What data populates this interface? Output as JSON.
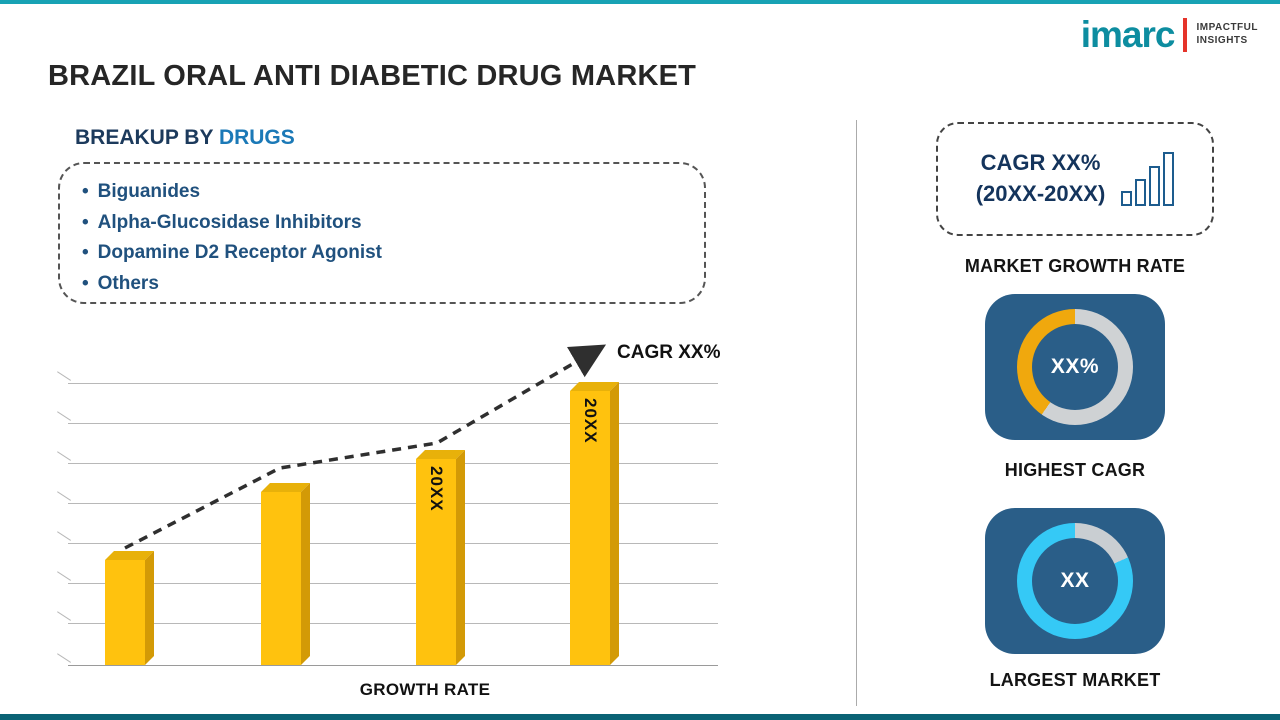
{
  "page": {
    "title": "BRAZIL ORAL ANTI DIABETIC DRUG MARKET"
  },
  "logo": {
    "brand": "imarc",
    "tagline_line1": "IMPACTFUL",
    "tagline_line2": "INSIGHTS"
  },
  "breakup": {
    "heading_prefix": "BREAKUP BY ",
    "heading_highlight": "DRUGS",
    "bullet": "•",
    "items": [
      "Biguanides",
      "Alpha-Glucosidase Inhibitors",
      "Dopamine D2 Receptor Agonist",
      "Others"
    ]
  },
  "chart_data": {
    "type": "bar",
    "categories": [
      "",
      "",
      "20XX",
      "20XX"
    ],
    "values": [
      29,
      48,
      57,
      76
    ],
    "title": "",
    "xlabel": "GROWTH RATE",
    "ylabel": "",
    "ylim": [
      0,
      80
    ],
    "grid": "horizontal",
    "annotation": "CAGR XX%",
    "trendline": "dashed ascending arrow",
    "bar_color": "#FFC20E"
  },
  "sidebar": {
    "growth_box": {
      "line1": "CAGR XX%",
      "line2": "(20XX-20XX)",
      "label": "MARKET GROWTH RATE"
    },
    "highest_cagr": {
      "value": "XX%",
      "label": "HIGHEST CAGR",
      "accent": "#F0A80D"
    },
    "largest_market": {
      "value": "XX",
      "label": "LARGEST MARKET",
      "accent": "#35C9F6"
    }
  },
  "colors": {
    "accent_teal": "#18A2B4",
    "bottom_bar": "#0B6375",
    "card_background": "#2A5E88",
    "heading_navy": "#1C3A5C",
    "heading_blue": "#1B79B7",
    "list_text": "#20517E",
    "bar_gold": "#FFC20E",
    "ring_gray": "#CFD2D4",
    "logo_teal": "#0D8DA0",
    "logo_red": "#E5332A"
  }
}
